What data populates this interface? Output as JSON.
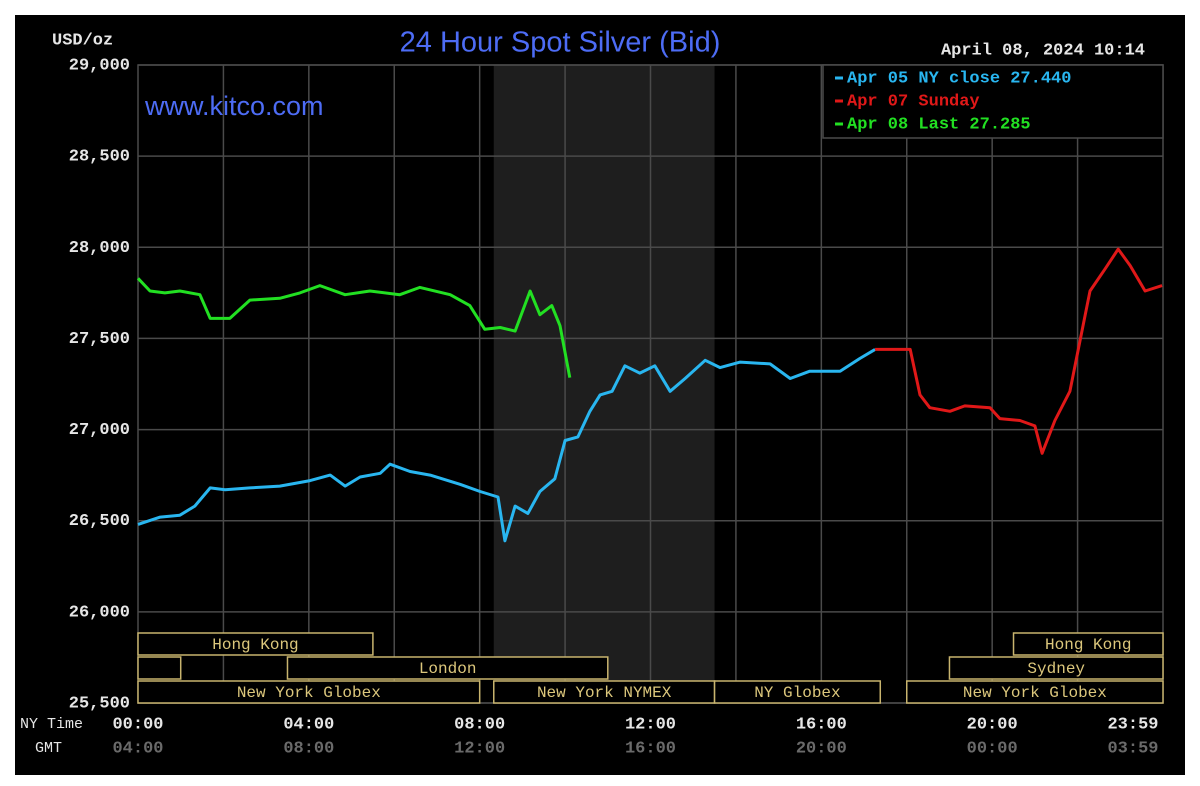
{
  "chart_data": {
    "type": "line",
    "title": "24 Hour Spot Silver (Bid)",
    "unit_label": "USD/oz",
    "timestamp": "April 08, 2024 10:14",
    "watermark": "www.kitco.com",
    "xlim": [
      0,
      24
    ],
    "ylim": [
      25.5,
      29
    ],
    "yticks": [
      {
        "value": 29,
        "label": "29,000"
      },
      {
        "value": 28.5,
        "label": "28,500"
      },
      {
        "value": 28,
        "label": "28,000"
      },
      {
        "value": 27.5,
        "label": "27,500"
      },
      {
        "value": 27,
        "label": "27,000"
      },
      {
        "value": 26.5,
        "label": "26,500"
      },
      {
        "value": 26,
        "label": "26,000"
      },
      {
        "value": 25.5,
        "label": "25,500"
      }
    ],
    "x_row_labels": [
      "NY Time",
      "GMT"
    ],
    "xticks": [
      {
        "value": 0,
        "label": "00:00"
      },
      {
        "value": 4,
        "label": "04:00"
      },
      {
        "value": 8,
        "label": "08:00"
      },
      {
        "value": 12,
        "label": "12:00"
      },
      {
        "value": 16,
        "label": "16:00"
      },
      {
        "value": 20,
        "label": "20:00"
      },
      {
        "value": 23.983,
        "label": "23:59"
      }
    ],
    "x2ticks": [
      {
        "value": 0,
        "label": "04:00"
      },
      {
        "value": 4,
        "label": "08:00"
      },
      {
        "value": 8,
        "label": "12:00"
      },
      {
        "value": 12,
        "label": "16:00"
      },
      {
        "value": 16,
        "label": "20:00"
      },
      {
        "value": 20,
        "label": "00:00"
      },
      {
        "value": 23.983,
        "label": "03:59"
      }
    ],
    "x_gridlines": [
      2,
      4,
      6,
      8,
      10,
      12,
      14,
      16,
      18,
      20,
      22
    ],
    "grid": true,
    "shaded_range": [
      8.33,
      13.5
    ],
    "sessions": [
      {
        "label": "Hong Kong",
        "start": 0,
        "end": 5.5,
        "row": 0
      },
      {
        "label": "Hong Kong",
        "start": 20.5,
        "end": 24,
        "row": 0
      },
      {
        "start": 0,
        "end": 1,
        "row": 1
      },
      {
        "label": "London",
        "start": 3.5,
        "end": 11,
        "row": 1
      },
      {
        "label": "Sydney",
        "start": 19,
        "end": 24,
        "row": 1
      },
      {
        "label": "New York Globex",
        "start": 0,
        "end": 8,
        "row": 2
      },
      {
        "label": "New York NYMEX",
        "start": 8.33,
        "end": 13.5,
        "row": 2
      },
      {
        "label": "NY Globex",
        "start": 13.5,
        "end": 17.38,
        "row": 2
      },
      {
        "label": "New York Globex",
        "start": 18,
        "end": 24,
        "row": 2
      }
    ],
    "legend": "top-right",
    "series": [
      {
        "name": "Apr 05 NY close 27.440",
        "color": "#29b6f0",
        "x": [
          0,
          0.52,
          0.98,
          1.33,
          1.69,
          2.04,
          2.62,
          3.32,
          4.03,
          4.5,
          4.85,
          5.2,
          5.67,
          5.9,
          6.37,
          6.84,
          7.54,
          8.01,
          8.43,
          8.59,
          8.83,
          9.13,
          9.41,
          9.76,
          10,
          10.3,
          10.58,
          10.82,
          11.1,
          11.4,
          11.75,
          12.1,
          12.46,
          12.81,
          13.28,
          13.63,
          14.1,
          14.8,
          15.27,
          15.73,
          16.44,
          16.9,
          17.26
        ],
        "values": [
          26.48,
          26.52,
          26.53,
          26.58,
          26.68,
          26.67,
          26.68,
          26.69,
          26.72,
          26.75,
          26.69,
          26.74,
          26.76,
          26.81,
          26.77,
          26.75,
          26.7,
          26.66,
          26.63,
          26.39,
          26.58,
          26.54,
          26.66,
          26.73,
          26.94,
          26.96,
          27.1,
          27.19,
          27.21,
          27.35,
          27.31,
          27.35,
          27.21,
          27.28,
          27.38,
          27.34,
          27.37,
          27.36,
          27.28,
          27.32,
          27.32,
          27.39,
          27.44
        ]
      },
      {
        "name": "Apr 07 Sunday",
        "color": "#e01818",
        "x": [
          17.26,
          18.08,
          18.31,
          18.54,
          19.01,
          19.36,
          19.95,
          20.18,
          20.65,
          21,
          21.17,
          21.47,
          21.82,
          22.06,
          22.29,
          22.64,
          22.95,
          23.23,
          23.58,
          23.98
        ],
        "values": [
          27.44,
          27.44,
          27.19,
          27.12,
          27.1,
          27.13,
          27.12,
          27.06,
          27.05,
          27.02,
          26.87,
          27.05,
          27.21,
          27.49,
          27.76,
          27.88,
          27.99,
          27.9,
          27.76,
          27.79
        ]
      },
      {
        "name": "Apr 08 Last 27.285",
        "color": "#22e022",
        "x": [
          0,
          0.28,
          0.63,
          0.98,
          1.45,
          1.69,
          2.15,
          2.62,
          3.32,
          3.79,
          4.26,
          4.85,
          5.43,
          6.13,
          6.6,
          7.31,
          7.77,
          8.12,
          8.48,
          8.83,
          9.18,
          9.41,
          9.69,
          9.88,
          10.11
        ],
        "values": [
          27.83,
          27.76,
          27.75,
          27.76,
          27.74,
          27.61,
          27.61,
          27.71,
          27.72,
          27.75,
          27.79,
          27.74,
          27.76,
          27.74,
          27.78,
          27.74,
          27.68,
          27.55,
          27.56,
          27.54,
          27.76,
          27.63,
          27.68,
          27.57,
          27.285
        ]
      }
    ]
  }
}
